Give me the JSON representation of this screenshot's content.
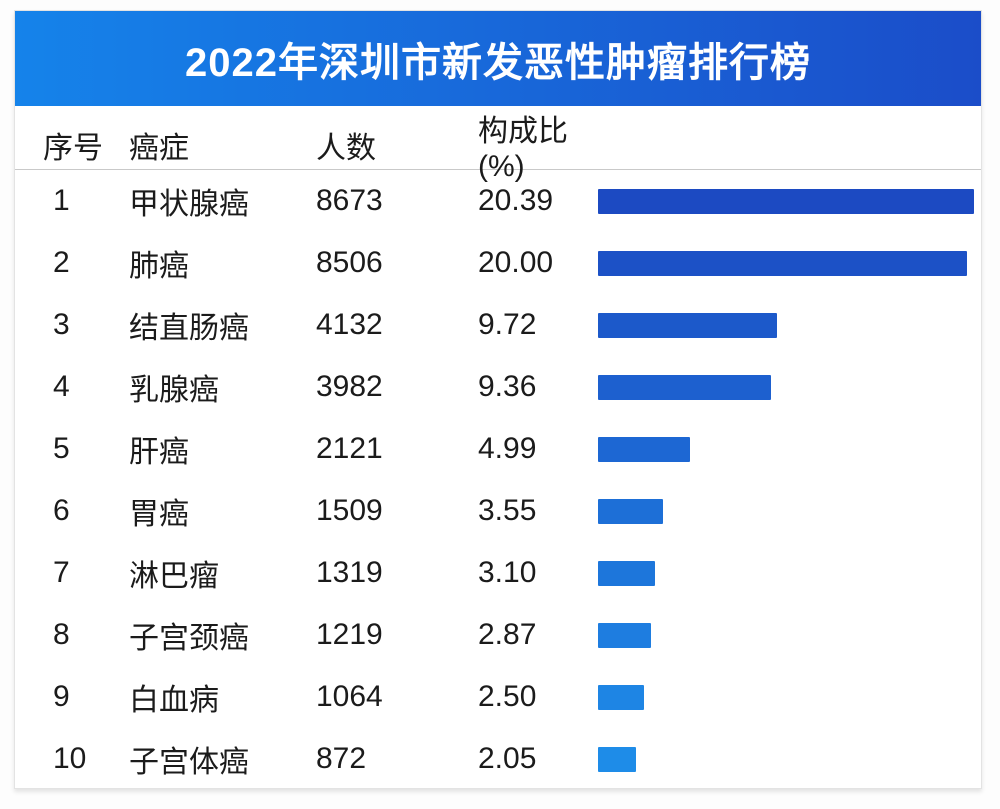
{
  "title": "2022年深圳市新发恶性肿瘤排行榜",
  "table": {
    "headers": [
      "序号",
      "癌症",
      "人数",
      "构成比(%)"
    ],
    "rows": [
      {
        "rank": "1",
        "cancer": "甲状腺癌",
        "count": "8673",
        "pct": "20.39"
      },
      {
        "rank": "2",
        "cancer": "肺癌",
        "count": "8506",
        "pct": "20.00"
      },
      {
        "rank": "3",
        "cancer": "结直肠癌",
        "count": "4132",
        "pct": "9.72"
      },
      {
        "rank": "4",
        "cancer": "乳腺癌",
        "count": "3982",
        "pct": "9.36"
      },
      {
        "rank": "5",
        "cancer": "肝癌",
        "count": "2121",
        "pct": "4.99"
      },
      {
        "rank": "6",
        "cancer": "胃癌",
        "count": "1509",
        "pct": "3.55"
      },
      {
        "rank": "7",
        "cancer": "淋巴瘤",
        "count": "1319",
        "pct": "3.10"
      },
      {
        "rank": "8",
        "cancer": "子宫颈癌",
        "count": "1219",
        "pct": "2.87"
      },
      {
        "rank": "9",
        "cancer": "白血病",
        "count": "1064",
        "pct": "2.50"
      },
      {
        "rank": "10",
        "cancer": "子宫体癌",
        "count": "872",
        "pct": "2.05"
      }
    ]
  },
  "colors": {
    "header_gradient_left": "#1583EA",
    "header_gradient_right": "#1B4DC9",
    "bar_top": "#1C4AC2",
    "bar_bottom": "#1E8CE8",
    "text": "#1B1B1B",
    "title_text": "#FFFFFF",
    "separator": "#C9C9C9"
  },
  "chart_data": {
    "type": "bar",
    "orientation": "horizontal",
    "title": "2022年深圳市新发恶性肿瘤排行榜",
    "categories": [
      "甲状腺癌",
      "肺癌",
      "结直肠癌",
      "乳腺癌",
      "肝癌",
      "胃癌",
      "淋巴瘤",
      "子宫颈癌",
      "白血病",
      "子宫体癌"
    ],
    "series": [
      {
        "name": "人数",
        "values": [
          8673,
          8506,
          4132,
          3982,
          2121,
          1509,
          1319,
          1219,
          1064,
          872
        ]
      },
      {
        "name": "构成比(%)",
        "values": [
          20.39,
          20.0,
          9.72,
          9.36,
          4.99,
          3.55,
          3.1,
          2.87,
          2.5,
          2.05
        ]
      }
    ],
    "bar_metric": "构成比(%)",
    "xlabel": "构成比(%)",
    "ylabel": "癌症",
    "xlim": [
      0,
      20.39
    ],
    "grid": false,
    "legend": "none"
  }
}
